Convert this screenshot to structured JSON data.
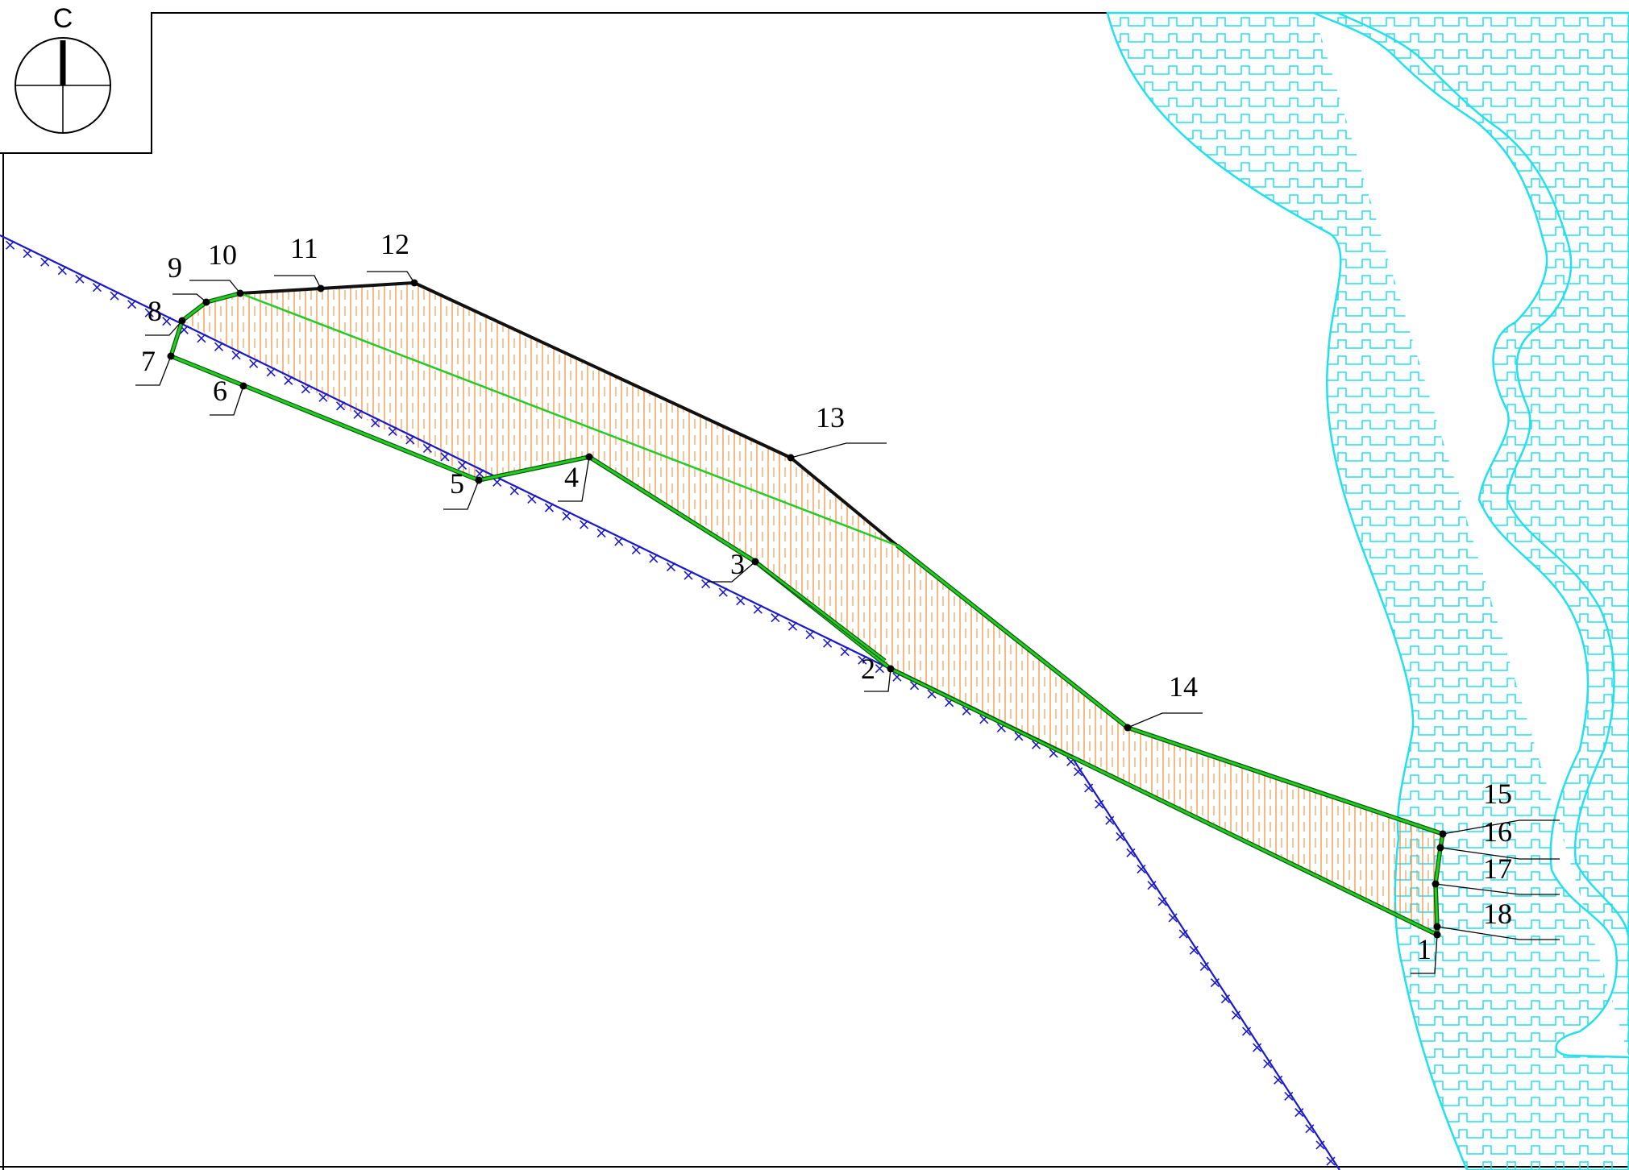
{
  "north_arrow": {
    "label": "С"
  },
  "points": [
    {
      "id": "1",
      "label": "1"
    },
    {
      "id": "2",
      "label": "2"
    },
    {
      "id": "3",
      "label": "3"
    },
    {
      "id": "4",
      "label": "4"
    },
    {
      "id": "5",
      "label": "5"
    },
    {
      "id": "6",
      "label": "6"
    },
    {
      "id": "7",
      "label": "7"
    },
    {
      "id": "8",
      "label": "8"
    },
    {
      "id": "9",
      "label": "9"
    },
    {
      "id": "10",
      "label": "10"
    },
    {
      "id": "11",
      "label": "11"
    },
    {
      "id": "12",
      "label": "12"
    },
    {
      "id": "13",
      "label": "13"
    },
    {
      "id": "14",
      "label": "14"
    },
    {
      "id": "15",
      "label": "15"
    },
    {
      "id": "16",
      "label": "16"
    },
    {
      "id": "17",
      "label": "17"
    },
    {
      "id": "18",
      "label": "18"
    }
  ],
  "colors": {
    "boundary_green": "#22cc22",
    "boundary_black": "#111111",
    "hatch_orange": "#f08a30",
    "water_cyan": "#22e0ee",
    "fence_blue": "#1a1acc"
  }
}
